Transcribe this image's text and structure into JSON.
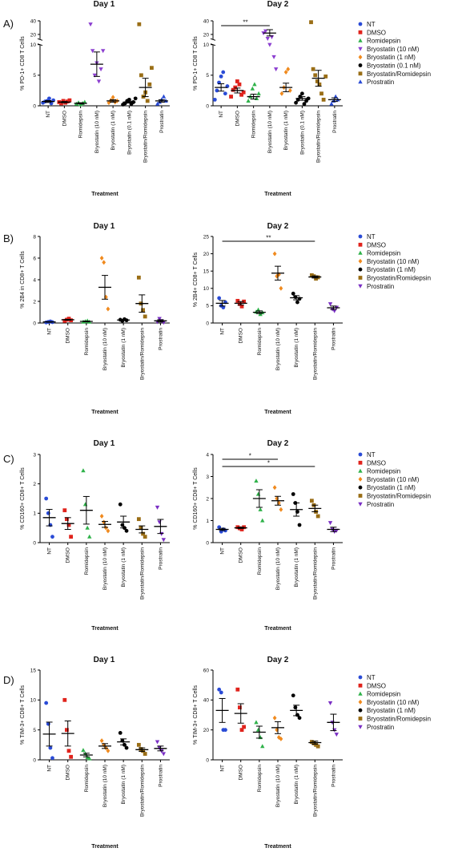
{
  "colors": {
    "NT": "#2a4bd6",
    "DMSO": "#e0231c",
    "Romidepsin": "#2fb24a",
    "Bryostatin (10 nM)": "#f08a1e",
    "Bryostatin (1 nM)": "#000000",
    "Bryostatin (0.1 nM)": "#000000",
    "Bryostatin/Romidepsin": "#9a6e16",
    "Prostratin": "#7a2fc4",
    "PanelA_Bryostatin (10 nM)": "#8c3fd0",
    "PanelA_Bryostatin (1 nM)": "#f08a1e"
  },
  "chart_data": [
    {
      "panel": "A)",
      "title": "Day 1",
      "type": "scatter",
      "xlabel": "Treatment",
      "ylabel": "% PD-1+ CD8 T Cells",
      "yticks": [
        "0",
        "5",
        "10",
        "20",
        "40"
      ],
      "categories": [
        "NT",
        "DMSO",
        "Romidepsin",
        "Bryostatin (10 nM)",
        "Bryostatin (1 nM)",
        "Bryostatin (0.1 nM)",
        "Bryostatin/Romidepsin",
        "Prostratin"
      ],
      "values": [
        [
          0.5,
          0.7,
          0.8,
          1.2,
          0.4,
          0.9
        ],
        [
          0.6,
          0.4,
          0.8,
          0.5,
          0.7,
          0.9
        ],
        [
          0.3,
          0.5,
          0.2,
          0.4,
          0.6
        ],
        [
          35,
          9,
          5,
          7,
          4,
          6,
          9
        ],
        [
          0.5,
          0.9,
          1.4,
          0.6,
          0.8
        ],
        [
          0.2,
          0.4,
          0.8,
          1.0,
          0.3,
          0.6,
          1.2
        ],
        [
          35,
          5,
          1.5,
          2.2,
          0.8,
          3.5,
          6.2
        ],
        [
          0.3,
          0.6,
          1.0,
          1.5,
          0.8
        ]
      ],
      "means": [
        0.7,
        0.6,
        0.4,
        6.8,
        0.8,
        0.6,
        3.0,
        0.8
      ],
      "sem": [
        0.15,
        0.1,
        0.1,
        2.0,
        0.2,
        0.15,
        1.5,
        0.2
      ],
      "legend": [
        "NT",
        "DMSO",
        "Romidepsin",
        "Bryostatin (10 nM)",
        "Bryostatin (1 nM)",
        "Bryostatin (0.1 nM)",
        "Bryostatin/Romidepsin",
        "Prostratin"
      ]
    },
    {
      "panel": "",
      "title": "Day 2",
      "type": "scatter",
      "xlabel": "Treatment",
      "ylabel": "% PD-1+ CD8 T Cells",
      "yticks": [
        "0",
        "5",
        "10",
        "20",
        "40"
      ],
      "significance": [
        {
          "from": 0,
          "to": 3,
          "label": "**"
        }
      ],
      "categories": [
        "NT",
        "DMSO",
        "Romidepsin",
        "Bryostatin (10 nM)",
        "Bryostatin (1 nM)",
        "Bryostatin (0.1 nM)",
        "Bryostatin/Romidepsin",
        "Prostratin"
      ],
      "values": [
        [
          1.0,
          2.5,
          3.8,
          4.8,
          5.5,
          2.0,
          3.2
        ],
        [
          1.5,
          2.6,
          3.0,
          4.0,
          3.5,
          1.8,
          2.2
        ],
        [
          0.8,
          1.5,
          2.8,
          3.5,
          1.2,
          2.0
        ],
        [
          22,
          25,
          12,
          10,
          15,
          8,
          6
        ],
        [
          2.0,
          3.0,
          5.5,
          6.0,
          2.5
        ],
        [
          0.5,
          1.0,
          1.5,
          2.0,
          0.3,
          0.8,
          1.2
        ],
        [
          38,
          6,
          5,
          4,
          3.5,
          2,
          1,
          4.8
        ],
        [
          0.3,
          0.8,
          1.5,
          1.0
        ]
      ],
      "means": [
        3.0,
        2.5,
        1.5,
        22.0,
        3.0,
        1.2,
        4.5,
        1.0
      ],
      "sem": [
        0.6,
        0.4,
        0.4,
        5.0,
        0.7,
        0.3,
        1.3,
        0.3
      ],
      "legend": [
        "NT",
        "DMSO",
        "Romidepsin",
        "Bryostatin (10 nM)",
        "Bryostatin (1 nM)",
        "Bryostatin (0.1 nM)",
        "Bryostatin/Romidepsin",
        "Prostratin"
      ]
    },
    {
      "panel": "B)",
      "title": "Day 1",
      "type": "scatter",
      "xlabel": "Treatment",
      "ylabel": "% 2B4 in CD8+ T Cells",
      "ylim": [
        0,
        8
      ],
      "yticks": [
        "0",
        "2",
        "4",
        "6",
        "8"
      ],
      "categories": [
        "NT",
        "DMSO",
        "Romidepsin",
        "Bryostatin (10 nM)",
        "Bryostatin (1 nM)",
        "Bryostatin/Romidepsin",
        "Prostratin"
      ],
      "values": [
        [
          0.05,
          0.1,
          0.15,
          0.08
        ],
        [
          0.2,
          0.3,
          0.4,
          0.25
        ],
        [
          0.1,
          0.15,
          0.2,
          0.1
        ],
        [
          6.0,
          5.6,
          2.4,
          1.3
        ],
        [
          0.3,
          0.2,
          0.35,
          0.25
        ],
        [
          4.2,
          1.8,
          1.2,
          0.6
        ],
        [
          0.1,
          0.4,
          0.2,
          0.05
        ]
      ],
      "means": [
        0.1,
        0.3,
        0.15,
        3.3,
        0.28,
        1.8,
        0.2
      ],
      "sem": [
        0.03,
        0.04,
        0.03,
        1.1,
        0.03,
        0.8,
        0.1
      ],
      "legend": [
        "NT",
        "DMSO",
        "Romidepsin",
        "Bryostatin (10 nM)",
        "Bryostatin (1 nM)",
        "Bryostatin/Romidepsin",
        "Prostratin"
      ]
    },
    {
      "panel": "",
      "title": "Day 2",
      "type": "scatter",
      "xlabel": "Treatment",
      "ylabel": "% 2B4+ CD8+ T Cells",
      "ylim": [
        0,
        25
      ],
      "yticks": [
        "0",
        "5",
        "10",
        "15",
        "20",
        "25"
      ],
      "significance": [
        {
          "from": 0,
          "to": 5,
          "label": "**"
        }
      ],
      "categories": [
        "NT",
        "DMSO",
        "Romidepsin",
        "Bryostatin (10 nM)",
        "Bryostatin (1 nM)",
        "Bryostatin/Romidepsin",
        "Prostratin"
      ],
      "values": [
        [
          7.2,
          5.0,
          4.5,
          6.0
        ],
        [
          6.4,
          5.5,
          4.8,
          6.2
        ],
        [
          3.2,
          3.8,
          2.5,
          3.0
        ],
        [
          20.0,
          13.5,
          14.0,
          10.0
        ],
        [
          8.5,
          7.5,
          6.0,
          7.0
        ],
        [
          13.8,
          13.5,
          12.8,
          13.2
        ],
        [
          5.5,
          4.0,
          3.5,
          4.5
        ]
      ],
      "means": [
        5.7,
        5.7,
        3.1,
        14.4,
        7.3,
        13.3,
        4.4
      ],
      "sem": [
        0.8,
        0.5,
        0.4,
        2.0,
        0.6,
        0.3,
        0.5
      ],
      "legend": [
        "NT",
        "DMSO",
        "Romidepsin",
        "Bryostatin (10 nM)",
        "Bryostatin (1 nM)",
        "Bryostatin/Romidepsin",
        "Prostratin"
      ]
    },
    {
      "panel": "C)",
      "title": "Day 1",
      "type": "scatter",
      "xlabel": "Treatment",
      "ylabel": "% CD160+ CD8+ T Cells",
      "ylim": [
        0,
        3
      ],
      "yticks": [
        "0",
        "1",
        "2",
        "3"
      ],
      "categories": [
        "NT",
        "DMSO",
        "Romidepsin",
        "Bryostatin (10 nM)",
        "Bryostatin (1 nM)",
        "Bryostatin/Romidepsin",
        "Prostratin"
      ],
      "values": [
        [
          1.5,
          1.0,
          0.6,
          0.2
        ],
        [
          1.1,
          0.8,
          0.6,
          0.2
        ],
        [
          2.45,
          1.3,
          0.5,
          0.2
        ],
        [
          0.9,
          0.7,
          0.5,
          0.4
        ],
        [
          1.3,
          0.6,
          0.5,
          0.4
        ],
        [
          0.8,
          0.5,
          0.3,
          0.2
        ],
        [
          1.2,
          0.7,
          0.3,
          0.1
        ]
      ],
      "means": [
        0.85,
        0.65,
        1.1,
        0.62,
        0.7,
        0.45,
        0.55
      ],
      "sem": [
        0.28,
        0.2,
        0.47,
        0.1,
        0.2,
        0.12,
        0.24
      ],
      "legend": [
        "NT",
        "DMSO",
        "Romidepsin",
        "Bryostatin (10 nM)",
        "Bryostatin (1 nM)",
        "Bryostatin/Romidepsin",
        "Prostratin"
      ]
    },
    {
      "panel": "",
      "title": "Day 2",
      "type": "scatter",
      "xlabel": "Treatment",
      "ylabel": "% CD160+ CD8+ T Cells",
      "ylim": [
        0,
        4
      ],
      "yticks": [
        "0",
        "1",
        "2",
        "3",
        "4"
      ],
      "significance": [
        {
          "from": 0,
          "to": 3,
          "label": "*"
        },
        {
          "from": 0,
          "to": 5,
          "label": "*"
        }
      ],
      "categories": [
        "NT",
        "DMSO",
        "Romidepsin",
        "Bryostatin (10 nM)",
        "Bryostatin (1 nM)",
        "Bryostatin/Romidepsin",
        "Prostratin"
      ],
      "values": [
        [
          0.7,
          0.5,
          0.6,
          0.55
        ],
        [
          0.7,
          0.65,
          0.6,
          0.7
        ],
        [
          2.8,
          2.2,
          1.5,
          1.0
        ],
        [
          2.5,
          2.0,
          1.8,
          1.5
        ],
        [
          2.2,
          1.8,
          1.4,
          0.8
        ],
        [
          1.9,
          1.7,
          1.4,
          1.2
        ],
        [
          0.9,
          0.6,
          0.5,
          0.55
        ]
      ],
      "means": [
        0.6,
        0.67,
        2.0,
        1.9,
        1.5,
        1.55,
        0.6
      ],
      "sem": [
        0.05,
        0.03,
        0.4,
        0.2,
        0.3,
        0.15,
        0.1
      ],
      "legend": [
        "NT",
        "DMSO",
        "Romidepsin",
        "Bryostatin (10 nM)",
        "Bryostatin (1 nM)",
        "Bryostatin/Romidepsin",
        "Prostratin"
      ]
    },
    {
      "panel": "D)",
      "title": "Day 1",
      "type": "scatter",
      "xlabel": "Treatment",
      "ylabel": "% TIM-3+ CD8+ T Cells",
      "ylim": [
        0,
        15
      ],
      "yticks": [
        "0",
        "5",
        "10",
        "15"
      ],
      "categories": [
        "NT",
        "DMSO",
        "Romidepsin",
        "Bryostatin (10 nM)",
        "Bryostatin (1 nM)",
        "Bryostatin/Romidepsin",
        "Prostratin"
      ],
      "values": [
        [
          9.5,
          6.0,
          2.0,
          0.3
        ],
        [
          10.0,
          5.0,
          1.5,
          0.5
        ],
        [
          1.6,
          1.0,
          0.4,
          0.2
        ],
        [
          3.2,
          2.5,
          2.0,
          1.5
        ],
        [
          4.5,
          3.2,
          2.5,
          2.0
        ],
        [
          2.5,
          1.8,
          1.5,
          1.0
        ],
        [
          3.0,
          2.0,
          1.5,
          1.0
        ]
      ],
      "means": [
        4.3,
        4.4,
        0.8,
        2.3,
        3.0,
        1.7,
        1.9
      ],
      "sem": [
        2.0,
        2.1,
        0.3,
        0.4,
        0.5,
        0.3,
        0.4
      ],
      "legend": [
        "NT",
        "DMSO",
        "Romidepsin",
        "Bryostatin (10 nM)",
        "Bryostatin (1 nM)",
        "Bryostatin/Romidepsin",
        "Prostratin"
      ]
    },
    {
      "panel": "",
      "title": "Day 2",
      "type": "scatter",
      "xlabel": "Treatment",
      "ylabel": "% TIM-3+ CD8+ T Cells",
      "ylim": [
        0,
        60
      ],
      "yticks": [
        "0",
        "20",
        "40",
        "60"
      ],
      "categories": [
        "NT",
        "DMSO",
        "Romidepsin",
        "Bryostatin (10 nM)",
        "Bryostatin (1 nM)",
        "Bryostatin/Romidepsin",
        "Prostratin"
      ],
      "values": [
        [
          47.0,
          45.0,
          20.0,
          20.0
        ],
        [
          47.0,
          35.0,
          20.0,
          22.0
        ],
        [
          25.0,
          20.0,
          15.0,
          9.0
        ],
        [
          28.0,
          20.0,
          15.0,
          14.0
        ],
        [
          43.0,
          35.0,
          30.0,
          28.0
        ],
        [
          12.0,
          11.0,
          10.0,
          9.0
        ],
        [
          38.0,
          25.0,
          20.0,
          17.0
        ]
      ],
      "means": [
        33.0,
        31.0,
        18.5,
        21.5,
        33.0,
        11.5,
        25.0
      ],
      "sem": [
        8.0,
        6.5,
        4.0,
        4.0,
        3.5,
        1.0,
        5.5
      ],
      "legend": [
        "NT",
        "DMSO",
        "Romidepsin",
        "Bryostatin (10 nM)",
        "Bryostatin (1 nM)",
        "Bryostatin/Romidepsin",
        "Prostratin"
      ]
    }
  ]
}
